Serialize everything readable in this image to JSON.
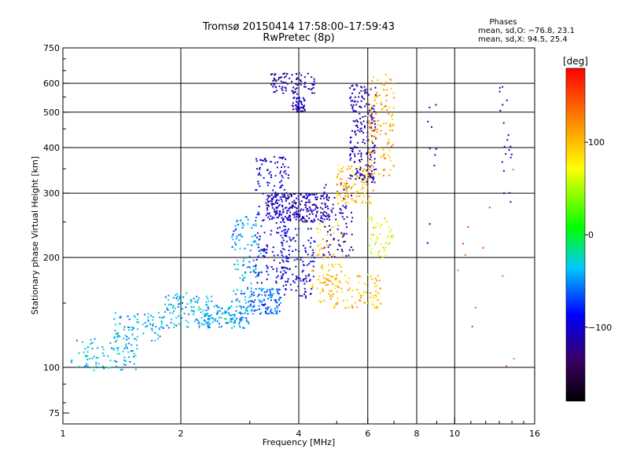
{
  "chart_data": {
    "type": "scatter",
    "title": "Tromsø 20150414 17:58:00–17:59:43",
    "subtitle": "RwPretec (8p)",
    "xlabel": "Frequency [MHz]",
    "ylabel": "Stationary phase Virtual Height [km]",
    "x_scale": "log",
    "y_scale": "log",
    "xlim": [
      1,
      16
    ],
    "ylim": [
      70,
      750
    ],
    "x_ticks": [
      1,
      2,
      4,
      6,
      8,
      10,
      16
    ],
    "x_tick_labels": [
      "1",
      "2",
      "4",
      "6",
      "8",
      "10",
      "16"
    ],
    "y_ticks": [
      75,
      100,
      200,
      300,
      400,
      500,
      600,
      750
    ],
    "y_tick_labels": [
      "75",
      "100",
      "200",
      "300",
      "400",
      "500",
      "600",
      "750"
    ],
    "grid": true,
    "grid_x": [
      2,
      4,
      6,
      8,
      10
    ],
    "grid_y": [
      100,
      200,
      300,
      400,
      500,
      600
    ],
    "phases": {
      "header": "Phases",
      "line1": "mean, sd,O: −76.8, 23.1",
      "line2": "mean, sd,X:  94.5, 25.4"
    },
    "colorbar": {
      "label": "[deg]",
      "range": [
        -180,
        180
      ],
      "ticks": [
        100,
        0,
        -100
      ],
      "tick_labels": [
        "100",
        "0",
        "−100"
      ]
    },
    "clusters": [
      {
        "x": [
          1.05,
          1.55
        ],
        "y": [
          98,
          120
        ],
        "n": 90,
        "phase": -40
      },
      {
        "x": [
          1.35,
          1.8
        ],
        "y": [
          118,
          142
        ],
        "n": 80,
        "phase": -40
      },
      {
        "x": [
          1.8,
          2.4
        ],
        "y": [
          128,
          160
        ],
        "n": 110,
        "phase": -40
      },
      {
        "x": [
          2.3,
          3.0
        ],
        "y": [
          128,
          148
        ],
        "n": 120,
        "phase": -45
      },
      {
        "x": [
          2.7,
          3.2
        ],
        "y": [
          150,
          260
        ],
        "n": 120,
        "phase": -45
      },
      {
        "x": [
          3.0,
          3.6
        ],
        "y": [
          140,
          165
        ],
        "n": 110,
        "phase": -60
      },
      {
        "x": [
          3.1,
          3.8
        ],
        "y": [
          170,
          380
        ],
        "n": 200,
        "phase": -100
      },
      {
        "x": [
          3.3,
          4.8
        ],
        "y": [
          250,
          300
        ],
        "n": 240,
        "phase": -110
      },
      {
        "x": [
          3.6,
          4.4
        ],
        "y": [
          155,
          240
        ],
        "n": 120,
        "phase": -100
      },
      {
        "x": [
          4.3,
          5.2
        ],
        "y": [
          160,
          250
        ],
        "n": 70,
        "phase": 95
      },
      {
        "x": [
          4.6,
          5.5
        ],
        "y": [
          200,
          320
        ],
        "n": 80,
        "phase": -110
      },
      {
        "x": [
          5.0,
          6.2
        ],
        "y": [
          280,
          360
        ],
        "n": 120,
        "phase": 100
      },
      {
        "x": [
          5.4,
          6.3
        ],
        "y": [
          320,
          600
        ],
        "n": 200,
        "phase": -110
      },
      {
        "x": [
          6.0,
          7.0
        ],
        "y": [
          330,
          640
        ],
        "n": 130,
        "phase": 110
      },
      {
        "x": [
          3.4,
          4.4
        ],
        "y": [
          560,
          640
        ],
        "n": 90,
        "phase": -115
      },
      {
        "x": [
          3.85,
          4.15
        ],
        "y": [
          500,
          550
        ],
        "n": 50,
        "phase": -110
      },
      {
        "x": [
          4.5,
          6.5
        ],
        "y": [
          145,
          180
        ],
        "n": 120,
        "phase": 100
      },
      {
        "x": [
          6.0,
          7.0
        ],
        "y": [
          200,
          260
        ],
        "n": 50,
        "phase": 70
      },
      {
        "x": [
          13.0,
          14.0
        ],
        "y": [
          280,
          620
        ],
        "n": 20,
        "phase": -110
      },
      {
        "x": [
          8.5,
          9.0
        ],
        "y": [
          200,
          540
        ],
        "n": 10,
        "phase": -110
      },
      {
        "x": [
          9.5,
          15.0
        ],
        "y": [
          90,
          420
        ],
        "n": 12,
        "phase": 140
      }
    ]
  }
}
